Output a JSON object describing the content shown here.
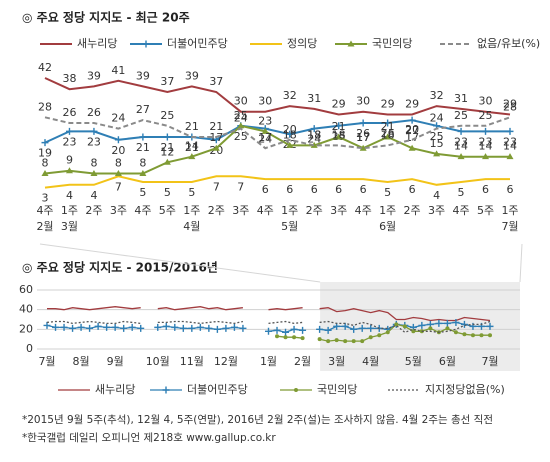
{
  "chart_data": [
    {
      "type": "line",
      "title": "◎ 주요 정당 지지도 - 최근 20주",
      "categories": [
        "4주",
        "1주",
        "2주",
        "3주",
        "4주",
        "5주",
        "1주",
        "2주",
        "3주",
        "4주",
        "1주",
        "2주",
        "3주",
        "4주",
        "1주",
        "2주",
        "3주",
        "4주",
        "5주",
        "1주"
      ],
      "months": [
        "2월",
        "3월",
        null,
        null,
        null,
        null,
        "4월",
        null,
        null,
        null,
        "5월",
        null,
        null,
        null,
        "6월",
        null,
        null,
        null,
        null,
        "7월"
      ],
      "series": [
        {
          "name": "새누리당",
          "color": "#a23c3f",
          "marker": "none",
          "dash": false,
          "label_position": "above",
          "values": [
            42,
            38,
            39,
            41,
            39,
            37,
            39,
            37,
            30,
            30,
            32,
            31,
            29,
            30,
            29,
            29,
            32,
            31,
            30,
            29
          ]
        },
        {
          "name": "더불어민주당",
          "color": "#2f7fb5",
          "marker": "plus",
          "dash": false,
          "label_position": "below",
          "values": [
            19,
            23,
            23,
            20,
            21,
            21,
            21,
            20,
            25,
            24,
            22,
            24,
            25,
            26,
            26,
            27,
            25,
            23,
            23,
            23
          ]
        },
        {
          "name": "정의당",
          "color": "#f2c318",
          "marker": "none",
          "dash": false,
          "label_position": "below",
          "values": [
            3,
            4,
            4,
            7,
            5,
            5,
            5,
            7,
            7,
            6,
            6,
            6,
            6,
            6,
            5,
            6,
            4,
            5,
            6,
            6
          ]
        },
        {
          "name": "국민의당",
          "color": "#7f9b34",
          "marker": "triangle",
          "dash": false,
          "label_position": "above",
          "values": [
            8,
            9,
            8,
            8,
            8,
            12,
            14,
            17,
            25,
            23,
            18,
            18,
            21,
            17,
            21,
            17,
            15,
            14,
            14,
            14
          ]
        },
        {
          "name": "없음/유보(%)",
          "color": "#8a8a8a",
          "marker": "none",
          "dash": true,
          "label_position": "above",
          "values": [
            28,
            26,
            26,
            24,
            27,
            25,
            21,
            21,
            24,
            17,
            20,
            18,
            18,
            17,
            18,
            20,
            24,
            25,
            25,
            28
          ]
        }
      ]
    },
    {
      "type": "line",
      "title": "◎ 주요 정당 지지도 - 2015/2016년",
      "categories": [
        "7월",
        null,
        null,
        null,
        "8월",
        null,
        null,
        null,
        "9월",
        null,
        null,
        null,
        null,
        "10월",
        null,
        null,
        null,
        "11월",
        null,
        null,
        null,
        "12월",
        null,
        null,
        null,
        null,
        "1월",
        null,
        null,
        null,
        "2월",
        null,
        null,
        null,
        "3월",
        null,
        null,
        null,
        "4월",
        null,
        null,
        null,
        null,
        "5월",
        null,
        null,
        null,
        "6월",
        null,
        null,
        null,
        null,
        "7월"
      ],
      "ylim": [
        0,
        60
      ],
      "yticks": [
        0,
        20,
        40,
        60
      ],
      "grid": true,
      "series": [
        {
          "name": "새누리당",
          "color": "#a23c3f",
          "marker": "none",
          "dash": false,
          "values": [
            41,
            41,
            40,
            42,
            41,
            40,
            41,
            42,
            43,
            42,
            41,
            42,
            null,
            41,
            42,
            40,
            41,
            42,
            43,
            41,
            42,
            40,
            41,
            42,
            null,
            null,
            40,
            41,
            40,
            41,
            42,
            null,
            41,
            42,
            38,
            39,
            41,
            39,
            37,
            39,
            37,
            30,
            30,
            32,
            31,
            29,
            30,
            29,
            29,
            32,
            31,
            30,
            29
          ]
        },
        {
          "name": "더불어민주당",
          "color": "#2f7fb5",
          "marker": "plus",
          "dash": false,
          "values": [
            24,
            22,
            22,
            21,
            22,
            21,
            23,
            22,
            22,
            21,
            22,
            21,
            null,
            22,
            23,
            22,
            21,
            21,
            22,
            21,
            20,
            21,
            22,
            21,
            null,
            null,
            18,
            19,
            17,
            20,
            19,
            null,
            20,
            19,
            23,
            23,
            20,
            21,
            21,
            21,
            20,
            25,
            24,
            22,
            24,
            25,
            26,
            26,
            27,
            25,
            23,
            23,
            23
          ]
        },
        {
          "name": "국민의당",
          "color": "#7f9b34",
          "marker": "dot",
          "dash": false,
          "values": [
            null,
            null,
            null,
            null,
            null,
            null,
            null,
            null,
            null,
            null,
            null,
            null,
            null,
            null,
            null,
            null,
            null,
            null,
            null,
            null,
            null,
            null,
            null,
            null,
            null,
            null,
            null,
            13,
            12,
            12,
            11,
            null,
            10,
            8,
            9,
            8,
            8,
            8,
            12,
            14,
            17,
            25,
            23,
            18,
            18,
            21,
            17,
            21,
            17,
            15,
            14,
            14,
            14
          ]
        },
        {
          "name": "지지정당없음(%)",
          "color": "#555555",
          "marker": "none",
          "dash": true,
          "values": [
            27,
            28,
            28,
            26,
            27,
            28,
            27,
            26,
            26,
            28,
            27,
            26,
            null,
            27,
            27,
            28,
            28,
            27,
            26,
            27,
            28,
            27,
            26,
            28,
            null,
            null,
            26,
            27,
            28,
            26,
            27,
            null,
            27,
            28,
            26,
            26,
            24,
            27,
            25,
            21,
            21,
            24,
            17,
            20,
            18,
            18,
            17,
            18,
            20,
            24,
            25,
            25,
            28
          ]
        }
      ]
    }
  ],
  "notes": [
    "*2015년 9월 5주(추석), 12월 4, 5주(연말), 2016년 2월 2주(설)는 조사하지 않음. 4월 2주는 총선 직전",
    "*한국갤럽 데일리 오피니언 제218호 www.gallup.co.kr"
  ]
}
